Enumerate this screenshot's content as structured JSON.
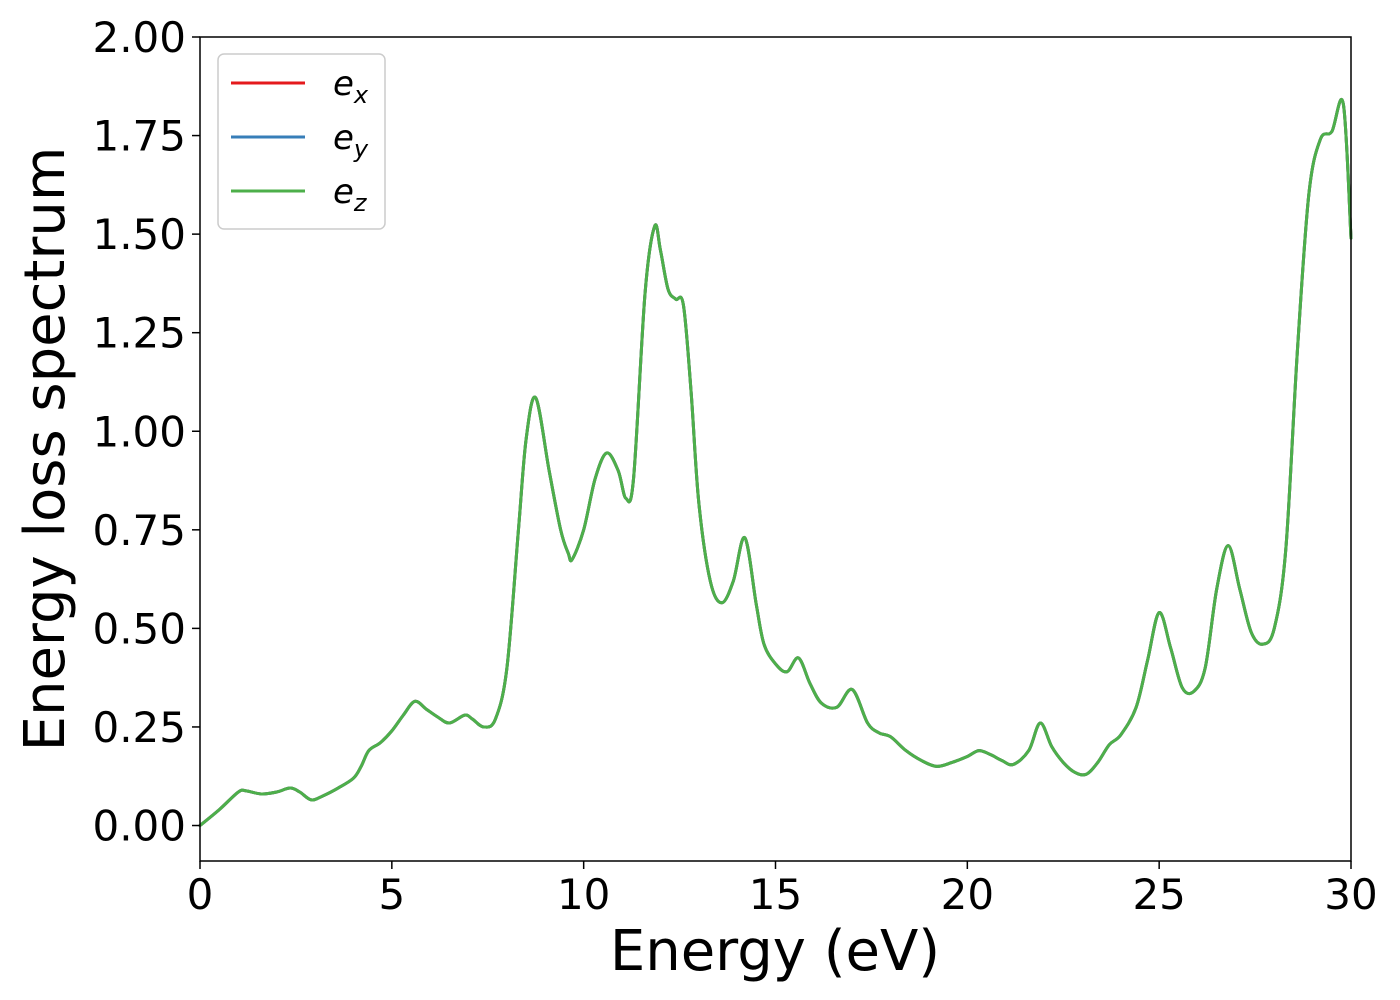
{
  "chart_data": {
    "type": "line",
    "title": "",
    "xlabel": "Energy (eV)",
    "ylabel": "Energy loss spectrum",
    "xlim": [
      0,
      30
    ],
    "ylim": [
      -0.09,
      2.0
    ],
    "xticks": [
      0,
      5,
      10,
      15,
      20,
      25,
      30
    ],
    "xtick_labels": [
      "0",
      "5",
      "10",
      "15",
      "20",
      "25",
      "30"
    ],
    "yticks": [
      0.0,
      0.25,
      0.5,
      0.75,
      1.0,
      1.25,
      1.5,
      1.75,
      2.0
    ],
    "ytick_labels": [
      "0.00",
      "0.25",
      "0.50",
      "0.75",
      "1.00",
      "1.25",
      "1.50",
      "1.75",
      "2.00"
    ],
    "grid": false,
    "legend_position": "top-left",
    "x": [
      0,
      0.5,
      1.0,
      1.2,
      1.6,
      2.0,
      2.35,
      2.6,
      2.9,
      3.2,
      3.6,
      4.0,
      4.2,
      4.4,
      4.7,
      5.0,
      5.3,
      5.6,
      5.9,
      6.2,
      6.5,
      6.9,
      7.1,
      7.4,
      7.7,
      8.0,
      8.3,
      8.5,
      8.75,
      9.1,
      9.4,
      9.6,
      9.7,
      10.0,
      10.3,
      10.6,
      10.9,
      11.1,
      11.3,
      11.6,
      11.85,
      12.0,
      12.2,
      12.4,
      12.6,
      12.8,
      13.0,
      13.3,
      13.6,
      13.9,
      14.2,
      14.5,
      14.7,
      15.0,
      15.3,
      15.6,
      15.9,
      16.2,
      16.6,
      17.0,
      17.4,
      17.7,
      18.0,
      18.4,
      18.8,
      19.2,
      19.6,
      20.0,
      20.3,
      20.6,
      20.9,
      21.2,
      21.6,
      21.9,
      22.2,
      22.5,
      22.8,
      23.1,
      23.4,
      23.7,
      24.0,
      24.4,
      24.7,
      25.0,
      25.3,
      25.6,
      25.9,
      26.2,
      26.5,
      26.8,
      27.1,
      27.4,
      27.7,
      28.0,
      28.3,
      28.6,
      28.9,
      29.2,
      29.5,
      29.8,
      30.0
    ],
    "series": [
      {
        "name": "e_x",
        "color": "#e41a1c",
        "y": [
          0.0,
          0.04,
          0.085,
          0.088,
          0.08,
          0.085,
          0.095,
          0.085,
          0.065,
          0.075,
          0.095,
          0.12,
          0.15,
          0.19,
          0.21,
          0.24,
          0.28,
          0.315,
          0.295,
          0.275,
          0.26,
          0.28,
          0.27,
          0.25,
          0.27,
          0.4,
          0.75,
          0.98,
          1.085,
          0.9,
          0.75,
          0.69,
          0.675,
          0.75,
          0.88,
          0.945,
          0.9,
          0.83,
          0.88,
          1.35,
          1.52,
          1.46,
          1.36,
          1.335,
          1.32,
          1.1,
          0.82,
          0.62,
          0.565,
          0.62,
          0.73,
          0.56,
          0.46,
          0.41,
          0.39,
          0.425,
          0.36,
          0.31,
          0.3,
          0.345,
          0.26,
          0.235,
          0.225,
          0.19,
          0.165,
          0.15,
          0.16,
          0.175,
          0.19,
          0.18,
          0.165,
          0.155,
          0.19,
          0.26,
          0.2,
          0.16,
          0.135,
          0.13,
          0.16,
          0.205,
          0.23,
          0.3,
          0.42,
          0.54,
          0.45,
          0.35,
          0.34,
          0.4,
          0.6,
          0.71,
          0.6,
          0.49,
          0.46,
          0.5,
          0.7,
          1.2,
          1.6,
          1.74,
          1.76,
          1.83,
          1.49
        ]
      },
      {
        "name": "e_y",
        "color": "#377eb8",
        "y": [
          0.0,
          0.04,
          0.085,
          0.088,
          0.08,
          0.085,
          0.095,
          0.085,
          0.065,
          0.075,
          0.095,
          0.12,
          0.15,
          0.19,
          0.21,
          0.24,
          0.28,
          0.315,
          0.295,
          0.275,
          0.26,
          0.28,
          0.27,
          0.25,
          0.27,
          0.4,
          0.75,
          0.98,
          1.085,
          0.9,
          0.75,
          0.69,
          0.675,
          0.75,
          0.88,
          0.945,
          0.9,
          0.83,
          0.88,
          1.35,
          1.52,
          1.46,
          1.36,
          1.335,
          1.32,
          1.1,
          0.82,
          0.62,
          0.565,
          0.62,
          0.73,
          0.56,
          0.46,
          0.41,
          0.39,
          0.425,
          0.36,
          0.31,
          0.3,
          0.345,
          0.26,
          0.235,
          0.225,
          0.19,
          0.165,
          0.15,
          0.16,
          0.175,
          0.19,
          0.18,
          0.165,
          0.155,
          0.19,
          0.26,
          0.2,
          0.16,
          0.135,
          0.13,
          0.16,
          0.205,
          0.23,
          0.3,
          0.42,
          0.54,
          0.45,
          0.35,
          0.34,
          0.4,
          0.6,
          0.71,
          0.6,
          0.49,
          0.46,
          0.5,
          0.7,
          1.2,
          1.6,
          1.74,
          1.76,
          1.83,
          1.49
        ]
      },
      {
        "name": "e_z",
        "color": "#4daf4a",
        "y": [
          0.0,
          0.04,
          0.085,
          0.088,
          0.08,
          0.085,
          0.095,
          0.085,
          0.065,
          0.075,
          0.095,
          0.12,
          0.15,
          0.19,
          0.21,
          0.24,
          0.28,
          0.315,
          0.295,
          0.275,
          0.26,
          0.28,
          0.27,
          0.25,
          0.27,
          0.4,
          0.75,
          0.98,
          1.085,
          0.9,
          0.75,
          0.69,
          0.675,
          0.75,
          0.88,
          0.945,
          0.9,
          0.83,
          0.88,
          1.35,
          1.52,
          1.46,
          1.36,
          1.335,
          1.32,
          1.1,
          0.82,
          0.62,
          0.565,
          0.62,
          0.73,
          0.56,
          0.46,
          0.41,
          0.39,
          0.425,
          0.36,
          0.31,
          0.3,
          0.345,
          0.26,
          0.235,
          0.225,
          0.19,
          0.165,
          0.15,
          0.16,
          0.175,
          0.19,
          0.18,
          0.165,
          0.155,
          0.19,
          0.26,
          0.2,
          0.16,
          0.135,
          0.13,
          0.16,
          0.205,
          0.23,
          0.3,
          0.42,
          0.54,
          0.45,
          0.35,
          0.34,
          0.4,
          0.6,
          0.71,
          0.6,
          0.49,
          0.46,
          0.5,
          0.7,
          1.2,
          1.6,
          1.74,
          1.76,
          1.83,
          1.49
        ]
      }
    ],
    "legend": [
      {
        "base": "e",
        "sub": "x",
        "color": "#e41a1c"
      },
      {
        "base": "e",
        "sub": "y",
        "color": "#377eb8"
      },
      {
        "base": "e",
        "sub": "z",
        "color": "#4daf4a"
      }
    ]
  }
}
